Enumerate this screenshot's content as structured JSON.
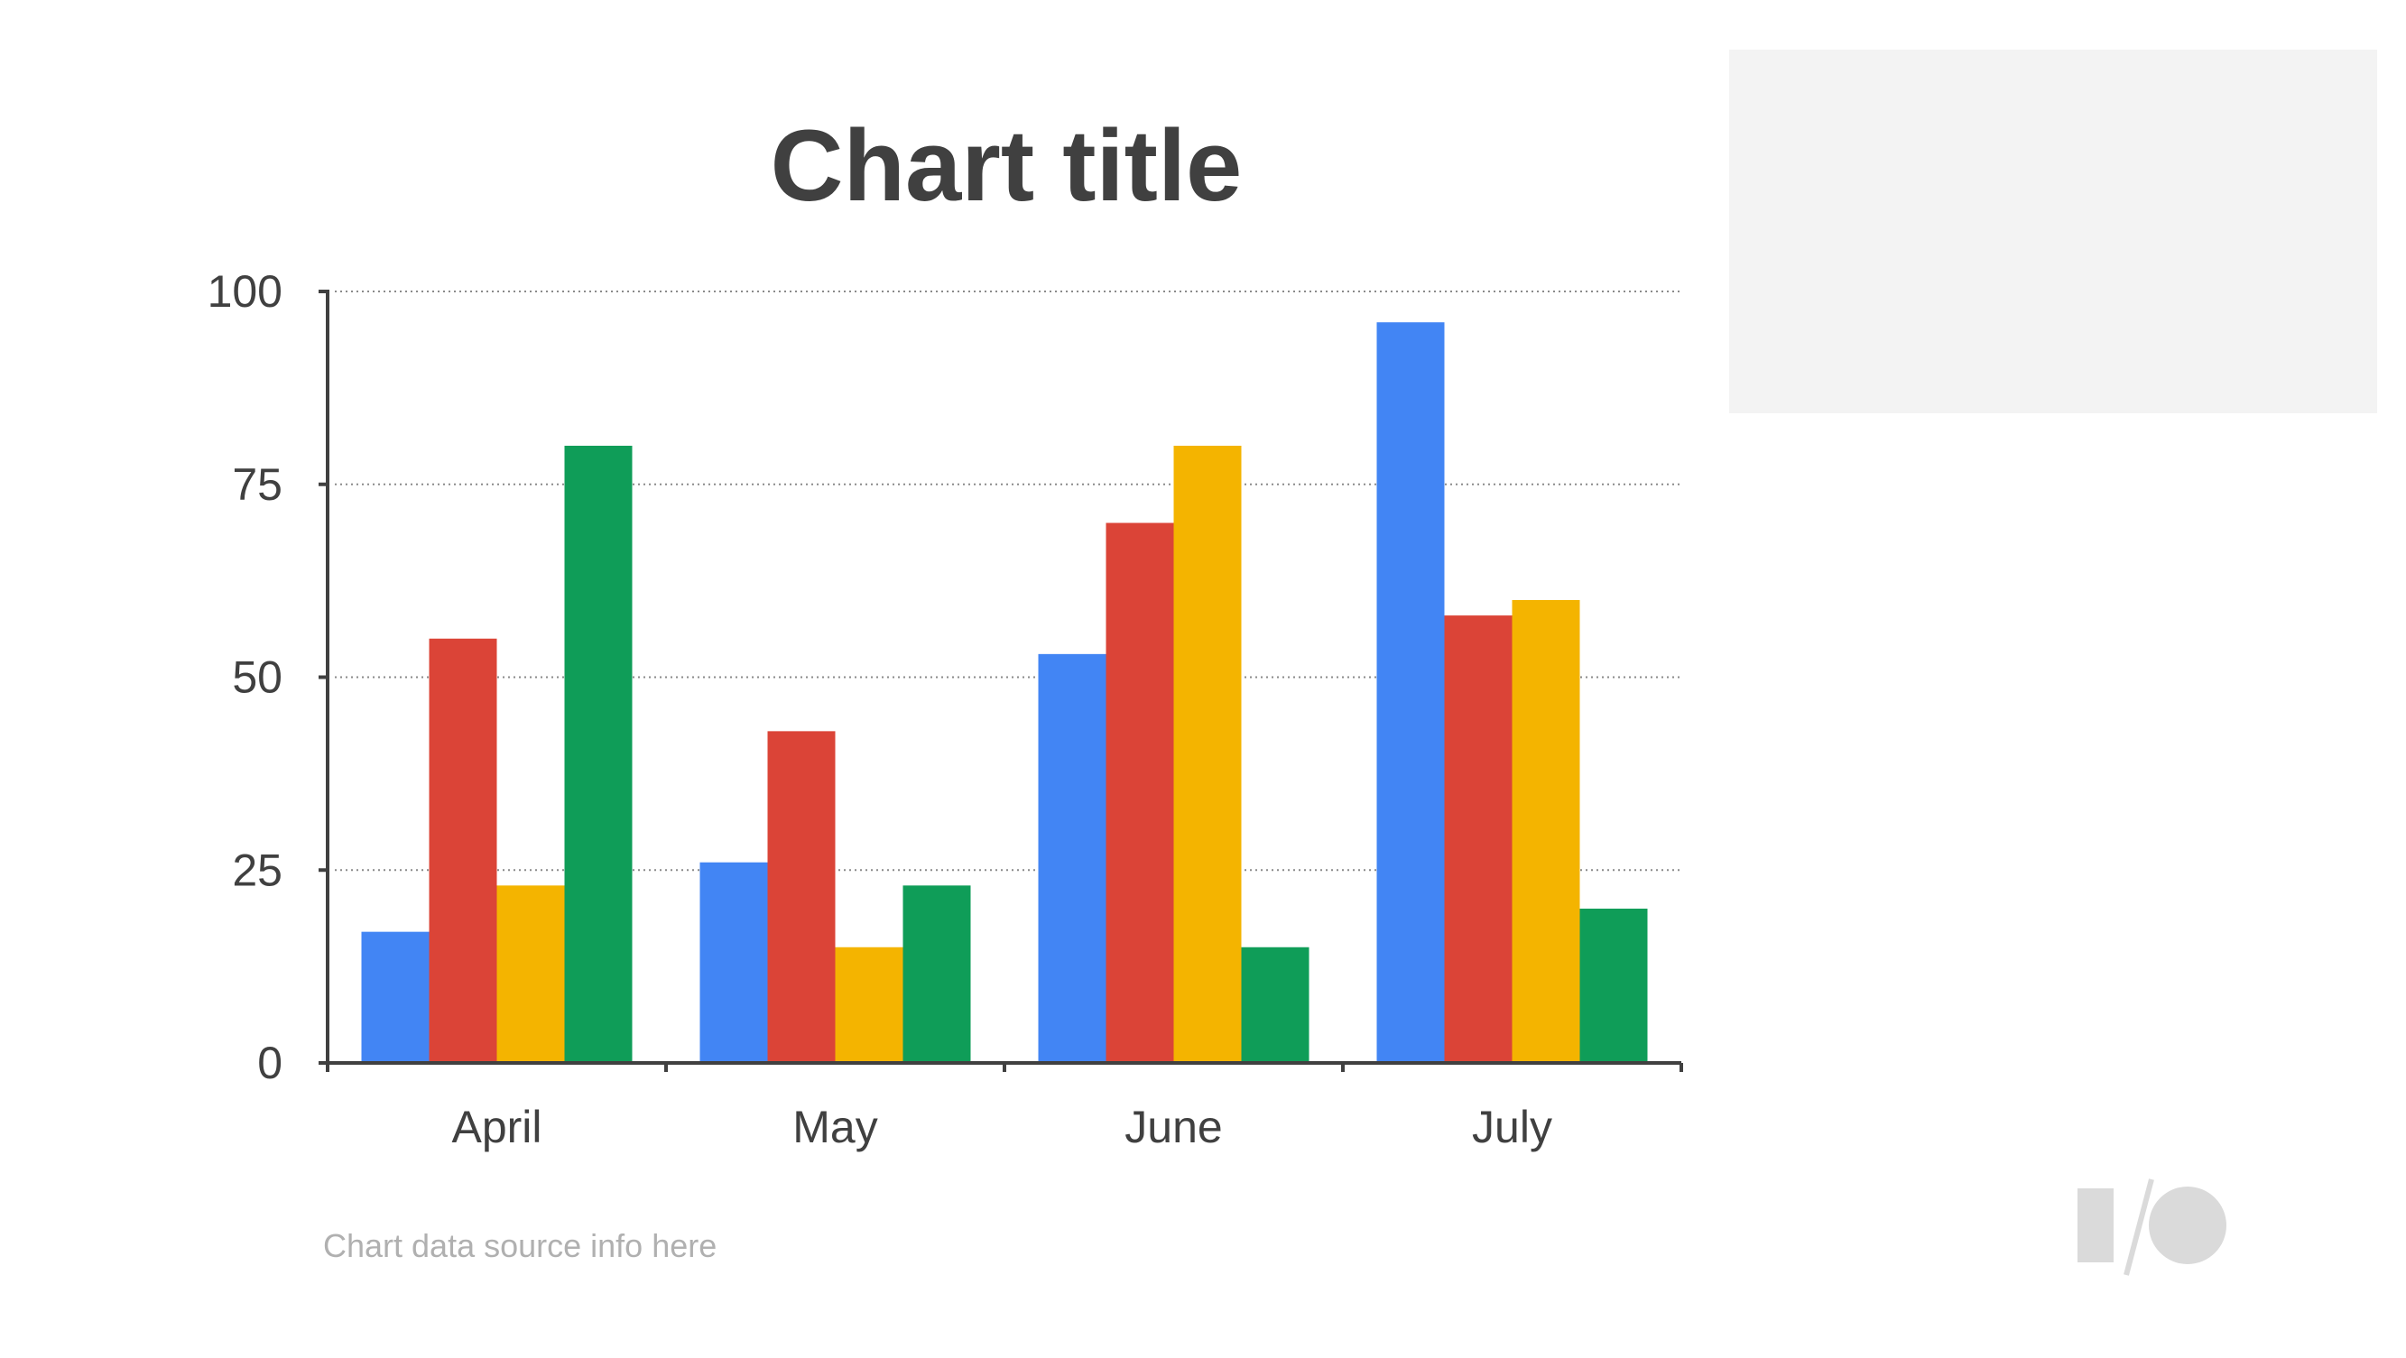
{
  "chart_data": {
    "type": "bar",
    "title": "Chart title",
    "categories": [
      "April",
      "May",
      "June",
      "July"
    ],
    "series": [
      {
        "values": [
          17,
          26,
          53,
          96
        ],
        "color": "#4285f4"
      },
      {
        "values": [
          55,
          43,
          70,
          58
        ],
        "color": "#db4437"
      },
      {
        "values": [
          23,
          15,
          80,
          60
        ],
        "color": "#f4b400"
      },
      {
        "values": [
          80,
          23,
          15,
          20
        ],
        "color": "#0f9d58"
      }
    ],
    "xlabel": "",
    "ylabel": "",
    "ylim": [
      0,
      100
    ],
    "yticks": [
      0,
      25,
      50,
      75,
      100
    ],
    "grid": true,
    "grid_style": "dotted",
    "legend": "none",
    "source_note": "Chart data source info here"
  },
  "colors": {
    "text_dark": "#404040",
    "source_text": "#b0b0b0",
    "axis": "#404040",
    "legend_box": "#f3f3f3",
    "logo": "#dadada"
  },
  "branding": {
    "logo_icon": "google-io-logo-icon"
  }
}
